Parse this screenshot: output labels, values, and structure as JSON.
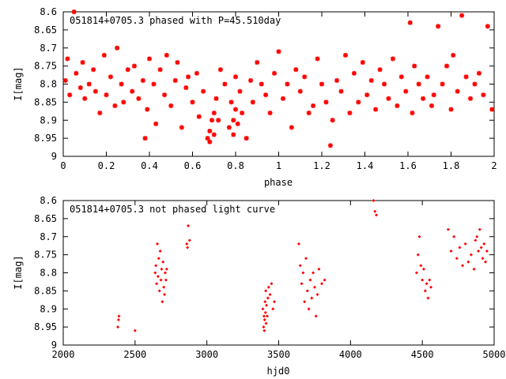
{
  "chart_data": [
    {
      "type": "scatter",
      "title": "051814+0705.3 phased with P=45.510day",
      "xlabel": "phase",
      "ylabel": "I[mag]",
      "xlim": [
        0,
        2
      ],
      "ylim": [
        9,
        8.6
      ],
      "y_inverted": true,
      "grid": false,
      "marker_color": "#ff0000",
      "marker": "asterisk",
      "xticks": [
        "0",
        "0.2",
        "0.4",
        "0.6",
        "0.8",
        "1",
        "1.2",
        "1.4",
        "1.6",
        "1.8",
        "2"
      ],
      "yticks": [
        "8.6",
        "8.65",
        "8.7",
        "8.75",
        "8.8",
        "8.85",
        "8.9",
        "8.95",
        "9"
      ],
      "series": [
        {
          "x": [
            0.01,
            0.02,
            0.03,
            0.05,
            0.06,
            0.08,
            0.09,
            0.1,
            0.12,
            0.14,
            0.15,
            0.17,
            0.19,
            0.2,
            0.22,
            0.24,
            0.25,
            0.27,
            0.28,
            0.3,
            0.32,
            0.33,
            0.35,
            0.37,
            0.38,
            0.39,
            0.4,
            0.42,
            0.43,
            0.45,
            0.47,
            0.48,
            0.5,
            0.52,
            0.53,
            0.55,
            0.57,
            0.58,
            0.6,
            0.62,
            0.63,
            0.65,
            0.67,
            0.68,
            0.68,
            0.69,
            0.7,
            0.7,
            0.71,
            0.72,
            0.73,
            0.75,
            0.77,
            0.78,
            0.79,
            0.79,
            0.8,
            0.8,
            0.81,
            0.82,
            0.83,
            0.85,
            0.87,
            0.88,
            0.9,
            0.92,
            0.94,
            0.96,
            0.98,
            1.0,
            1.02,
            1.04,
            1.06,
            1.08,
            1.1,
            1.12,
            1.14,
            1.16,
            1.18,
            1.2,
            1.22,
            1.24,
            1.25,
            1.27,
            1.29,
            1.31,
            1.33,
            1.35,
            1.37,
            1.39,
            1.41,
            1.43,
            1.45,
            1.47,
            1.49,
            1.51,
            1.53,
            1.55,
            1.57,
            1.59,
            1.61,
            1.62,
            1.63,
            1.65,
            1.67,
            1.69,
            1.71,
            1.72,
            1.74,
            1.76,
            1.78,
            1.8,
            1.81,
            1.83,
            1.85,
            1.87,
            1.89,
            1.91,
            1.93,
            1.95,
            1.97,
            1.99
          ],
          "y": [
            8.79,
            8.73,
            8.83,
            8.6,
            8.77,
            8.81,
            8.74,
            8.84,
            8.8,
            8.76,
            8.82,
            8.88,
            8.72,
            8.83,
            8.78,
            8.86,
            8.7,
            8.8,
            8.85,
            8.76,
            8.82,
            8.75,
            8.84,
            8.79,
            8.95,
            8.87,
            8.73,
            8.8,
            8.91,
            8.76,
            8.83,
            8.72,
            8.86,
            8.79,
            8.74,
            8.92,
            8.81,
            8.78,
            8.85,
            8.77,
            8.89,
            8.82,
            8.95,
            8.93,
            8.96,
            8.9,
            8.94,
            8.88,
            8.84,
            8.9,
            8.76,
            8.8,
            8.92,
            8.85,
            8.9,
            8.94,
            8.87,
            8.78,
            8.91,
            8.82,
            8.88,
            8.95,
            8.79,
            8.85,
            8.74,
            8.8,
            8.83,
            8.88,
            8.77,
            8.71,
            8.84,
            8.8,
            8.92,
            8.76,
            8.82,
            8.78,
            8.88,
            8.86,
            8.73,
            8.8,
            8.85,
            8.97,
            8.9,
            8.79,
            8.82,
            8.72,
            8.88,
            8.77,
            8.85,
            8.74,
            8.83,
            8.79,
            8.87,
            8.76,
            8.8,
            8.84,
            8.73,
            8.86,
            8.78,
            8.82,
            8.63,
            8.88,
            8.75,
            8.8,
            8.84,
            8.78,
            8.86,
            8.83,
            8.64,
            8.8,
            8.75,
            8.87,
            8.72,
            8.82,
            8.61,
            8.78,
            8.84,
            8.8,
            8.77,
            8.83,
            8.64,
            8.87
          ]
        }
      ]
    },
    {
      "type": "scatter",
      "title": "051814+0705.3 not phased light curve",
      "xlabel": "hjd0",
      "ylabel": "I[mag]",
      "xlim": [
        2000,
        5000
      ],
      "ylim": [
        9,
        8.6
      ],
      "y_inverted": true,
      "grid": false,
      "marker_color": "#ff0000",
      "marker": "diamond",
      "xticks": [
        "2000",
        "2500",
        "3000",
        "3500",
        "4000",
        "4500",
        "5000"
      ],
      "yticks": [
        "8.6",
        "8.65",
        "8.7",
        "8.75",
        "8.8",
        "8.85",
        "8.9",
        "8.95",
        "9"
      ],
      "series": [
        {
          "x": [
            2380,
            2385,
            2388,
            2500,
            2640,
            2645,
            2650,
            2655,
            2660,
            2665,
            2670,
            2675,
            2680,
            2685,
            2690,
            2695,
            2700,
            2705,
            2710,
            2715,
            2720,
            2860,
            2865,
            2870,
            2880,
            3390,
            3395,
            3398,
            3400,
            3402,
            3405,
            3408,
            3410,
            3412,
            3415,
            3420,
            3425,
            3430,
            3440,
            3450,
            3460,
            3470,
            3640,
            3650,
            3660,
            3670,
            3680,
            3690,
            3700,
            3710,
            3720,
            3730,
            3740,
            3750,
            3760,
            3770,
            3780,
            3800,
            3820,
            4160,
            4170,
            4180,
            4460,
            4470,
            4480,
            4490,
            4500,
            4510,
            4520,
            4530,
            4540,
            4550,
            4560,
            4680,
            4700,
            4720,
            4740,
            4760,
            4780,
            4800,
            4820,
            4840,
            4860,
            4870,
            4880,
            4890,
            4900,
            4910,
            4920,
            4930,
            4940,
            4950
          ],
          "y": [
            8.95,
            8.93,
            8.92,
            8.96,
            8.8,
            8.78,
            8.83,
            8.72,
            8.81,
            8.76,
            8.85,
            8.74,
            8.82,
            8.79,
            8.88,
            8.77,
            8.84,
            8.86,
            8.8,
            8.82,
            8.79,
            8.72,
            8.73,
            8.67,
            8.71,
            8.9,
            8.95,
            8.92,
            8.96,
            8.93,
            8.88,
            8.91,
            8.85,
            8.94,
            8.89,
            8.92,
            8.87,
            8.84,
            8.86,
            8.83,
            8.9,
            8.88,
            8.72,
            8.78,
            8.83,
            8.8,
            8.88,
            8.76,
            8.85,
            8.9,
            8.82,
            8.87,
            8.8,
            8.84,
            8.92,
            8.86,
            8.79,
            8.83,
            8.82,
            8.6,
            8.63,
            8.64,
            8.8,
            8.75,
            8.7,
            8.78,
            8.82,
            8.79,
            8.85,
            8.83,
            8.87,
            8.82,
            8.84,
            8.68,
            8.74,
            8.7,
            8.76,
            8.73,
            8.78,
            8.72,
            8.77,
            8.75,
            8.79,
            8.71,
            8.7,
            8.74,
            8.68,
            8.73,
            8.76,
            8.72,
            8.77,
            8.74
          ]
        }
      ]
    }
  ]
}
